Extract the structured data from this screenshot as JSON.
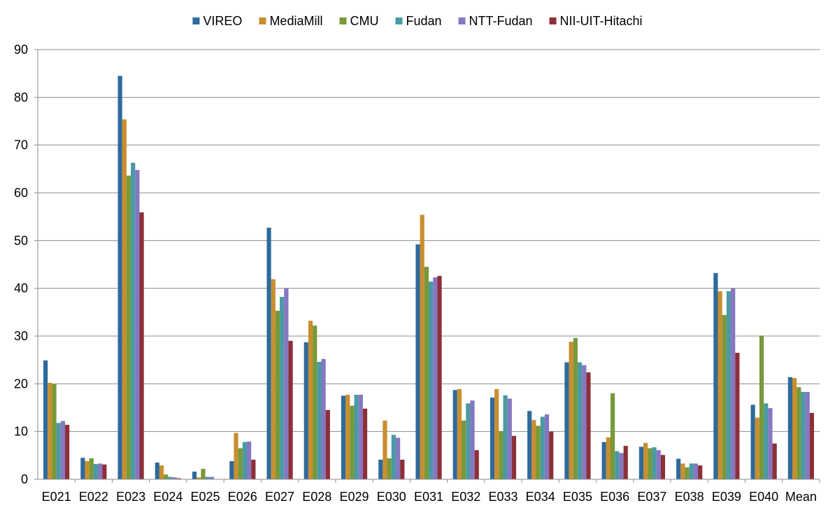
{
  "chart_data": {
    "type": "bar",
    "title": "",
    "xlabel": "",
    "ylabel": "",
    "ylim": [
      0,
      90
    ],
    "yticks": [
      0,
      10,
      20,
      30,
      40,
      50,
      60,
      70,
      80,
      90
    ],
    "grid": "horizontal",
    "legend_position": "top",
    "categories": [
      "E021",
      "E022",
      "E023",
      "E024",
      "E025",
      "E026",
      "E027",
      "E028",
      "E029",
      "E030",
      "E031",
      "E032",
      "E033",
      "E034",
      "E035",
      "E036",
      "E037",
      "E038",
      "E039",
      "E040",
      "Mean"
    ],
    "series": [
      {
        "name": "VIREO",
        "color": "#2E6A9C",
        "values": [
          24.9,
          4.5,
          84.5,
          3.5,
          1.6,
          3.8,
          52.7,
          28.7,
          17.5,
          4.1,
          49.2,
          18.7,
          17.1,
          14.3,
          24.5,
          7.8,
          6.8,
          4.3,
          43.2,
          15.6,
          21.4
        ]
      },
      {
        "name": "MediaMill",
        "color": "#C98E2E",
        "values": [
          20.2,
          3.8,
          75.4,
          2.9,
          0.4,
          9.7,
          41.9,
          33.2,
          17.7,
          12.3,
          55.4,
          18.9,
          18.9,
          12.4,
          28.8,
          8.8,
          7.6,
          3.3,
          39.4,
          12.9,
          21.2
        ]
      },
      {
        "name": "CMU",
        "color": "#76993A",
        "values": [
          19.9,
          4.4,
          63.6,
          1.0,
          2.2,
          6.5,
          35.3,
          32.2,
          15.4,
          4.4,
          44.5,
          12.3,
          10.1,
          11.2,
          29.6,
          18.0,
          6.5,
          2.5,
          34.4,
          30.1,
          19.3
        ]
      },
      {
        "name": "Fudan",
        "color": "#4A9AA3",
        "values": [
          11.8,
          3.2,
          66.3,
          0.5,
          0.5,
          7.8,
          38.2,
          24.6,
          17.7,
          9.3,
          41.4,
          15.9,
          17.6,
          13.1,
          24.5,
          5.9,
          6.7,
          3.3,
          39.4,
          15.9,
          18.3
        ]
      },
      {
        "name": "NTT-Fudan",
        "color": "#8677C2",
        "values": [
          12.2,
          3.3,
          64.8,
          0.4,
          0.5,
          7.9,
          40.0,
          25.2,
          17.7,
          8.7,
          42.3,
          16.5,
          16.9,
          13.6,
          23.9,
          5.5,
          6.1,
          3.3,
          40.0,
          14.9,
          18.3
        ]
      },
      {
        "name": "NII-UIT-Hitachi",
        "color": "#8C3038",
        "values": [
          11.4,
          3.1,
          55.9,
          0.2,
          0.0,
          4.1,
          29.0,
          14.5,
          14.8,
          4.1,
          42.6,
          6.1,
          9.1,
          10.0,
          22.4,
          7.0,
          5.1,
          2.9,
          26.5,
          7.5,
          13.9
        ]
      }
    ]
  }
}
